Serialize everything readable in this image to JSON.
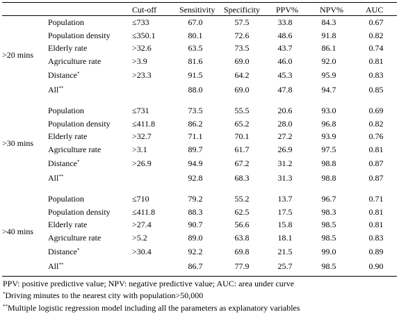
{
  "headers": [
    "",
    "",
    "Cut-off",
    "Sensitivity",
    "Specificity",
    "PPV%",
    "NPV%",
    "AUC"
  ],
  "groups": [
    {
      "label": ">20 mins",
      "rows": [
        {
          "param": "Population",
          "mark": "",
          "cutoff": "≤733",
          "sens": "67.0",
          "spec": "57.5",
          "ppv": "33.8",
          "npv": "84.3",
          "auc": "0.67"
        },
        {
          "param": "Population density",
          "mark": "",
          "cutoff": "≤350.1",
          "sens": "80.1",
          "spec": "72.6",
          "ppv": "48.6",
          "npv": "91.8",
          "auc": "0.82"
        },
        {
          "param": "Elderly rate",
          "mark": "",
          "cutoff": ">32.6",
          "sens": "63.5",
          "spec": "73.5",
          "ppv": "43.7",
          "npv": "86.1",
          "auc": "0.74"
        },
        {
          "param": "Agriculture rate",
          "mark": "",
          "cutoff": ">3.9",
          "sens": "81.6",
          "spec": "69.0",
          "ppv": "46.0",
          "npv": "92.0",
          "auc": "0.81"
        },
        {
          "param": "Distance",
          "mark": "*",
          "cutoff": ">23.3",
          "sens": "91.5",
          "spec": "64.2",
          "ppv": "45.3",
          "npv": "95.9",
          "auc": "0.83"
        },
        {
          "param": "All",
          "mark": "**",
          "cutoff": "",
          "sens": "88.0",
          "spec": "69.0",
          "ppv": "47.8",
          "npv": "94.7",
          "auc": "0.85"
        }
      ]
    },
    {
      "label": ">30 mins",
      "rows": [
        {
          "param": "Population",
          "mark": "",
          "cutoff": "≤731",
          "sens": "73.5",
          "spec": "55.5",
          "ppv": "20.6",
          "npv": "93.0",
          "auc": "0.69"
        },
        {
          "param": "Population density",
          "mark": "",
          "cutoff": "≤411.8",
          "sens": "86.2",
          "spec": "65.2",
          "ppv": "28.0",
          "npv": "96.8",
          "auc": "0.82"
        },
        {
          "param": "Elderly rate",
          "mark": "",
          "cutoff": ">32.7",
          "sens": "71.1",
          "spec": "70.1",
          "ppv": "27.2",
          "npv": "93.9",
          "auc": "0.76"
        },
        {
          "param": "Agriculture rate",
          "mark": "",
          "cutoff": ">3.1",
          "sens": "89.7",
          "spec": "61.7",
          "ppv": "26.9",
          "npv": "97.5",
          "auc": "0.81"
        },
        {
          "param": "Distance",
          "mark": "*",
          "cutoff": ">26.9",
          "sens": "94.9",
          "spec": "67.2",
          "ppv": "31.2",
          "npv": "98.8",
          "auc": "0.87"
        },
        {
          "param": "All",
          "mark": "**",
          "cutoff": "",
          "sens": "92.8",
          "spec": "68.3",
          "ppv": "31.3",
          "npv": "98.8",
          "auc": "0.87"
        }
      ]
    },
    {
      "label": ">40 mins",
      "rows": [
        {
          "param": "Population",
          "mark": "",
          "cutoff": "≤710",
          "sens": "79.2",
          "spec": "55.2",
          "ppv": "13.7",
          "npv": "96.7",
          "auc": "0.71"
        },
        {
          "param": "Population density",
          "mark": "",
          "cutoff": "≤411.8",
          "sens": "88.3",
          "spec": "62.5",
          "ppv": "17.5",
          "npv": "98.3",
          "auc": "0.81"
        },
        {
          "param": "Elderly rate",
          "mark": "",
          "cutoff": ">27.4",
          "sens": "90.7",
          "spec": "56.6",
          "ppv": "15.8",
          "npv": "98.5",
          "auc": "0.81"
        },
        {
          "param": "Agriculture rate",
          "mark": "",
          "cutoff": ">5.2",
          "sens": "89.0",
          "spec": "63.8",
          "ppv": "18.1",
          "npv": "98.5",
          "auc": "0.83"
        },
        {
          "param": "Distance",
          "mark": "*",
          "cutoff": ">30.4",
          "sens": "92.2",
          "spec": "69.8",
          "ppv": "21.5",
          "npv": "99.0",
          "auc": "0.89"
        },
        {
          "param": "All",
          "mark": "**",
          "cutoff": "",
          "sens": "86.7",
          "spec": "77.9",
          "ppv": "25.7",
          "npv": "98.5",
          "auc": "0.90"
        }
      ]
    }
  ],
  "footnotes": [
    {
      "mark": "",
      "text": "PPV: positive predictive value; NPV: negative predictive value; AUC: area under curve"
    },
    {
      "mark": "*",
      "text": "Driving minutes to the nearest city with population>50,000"
    },
    {
      "mark": "**",
      "text": "Multiple logistic  regression model including all the parameters as explanatory variables"
    }
  ]
}
